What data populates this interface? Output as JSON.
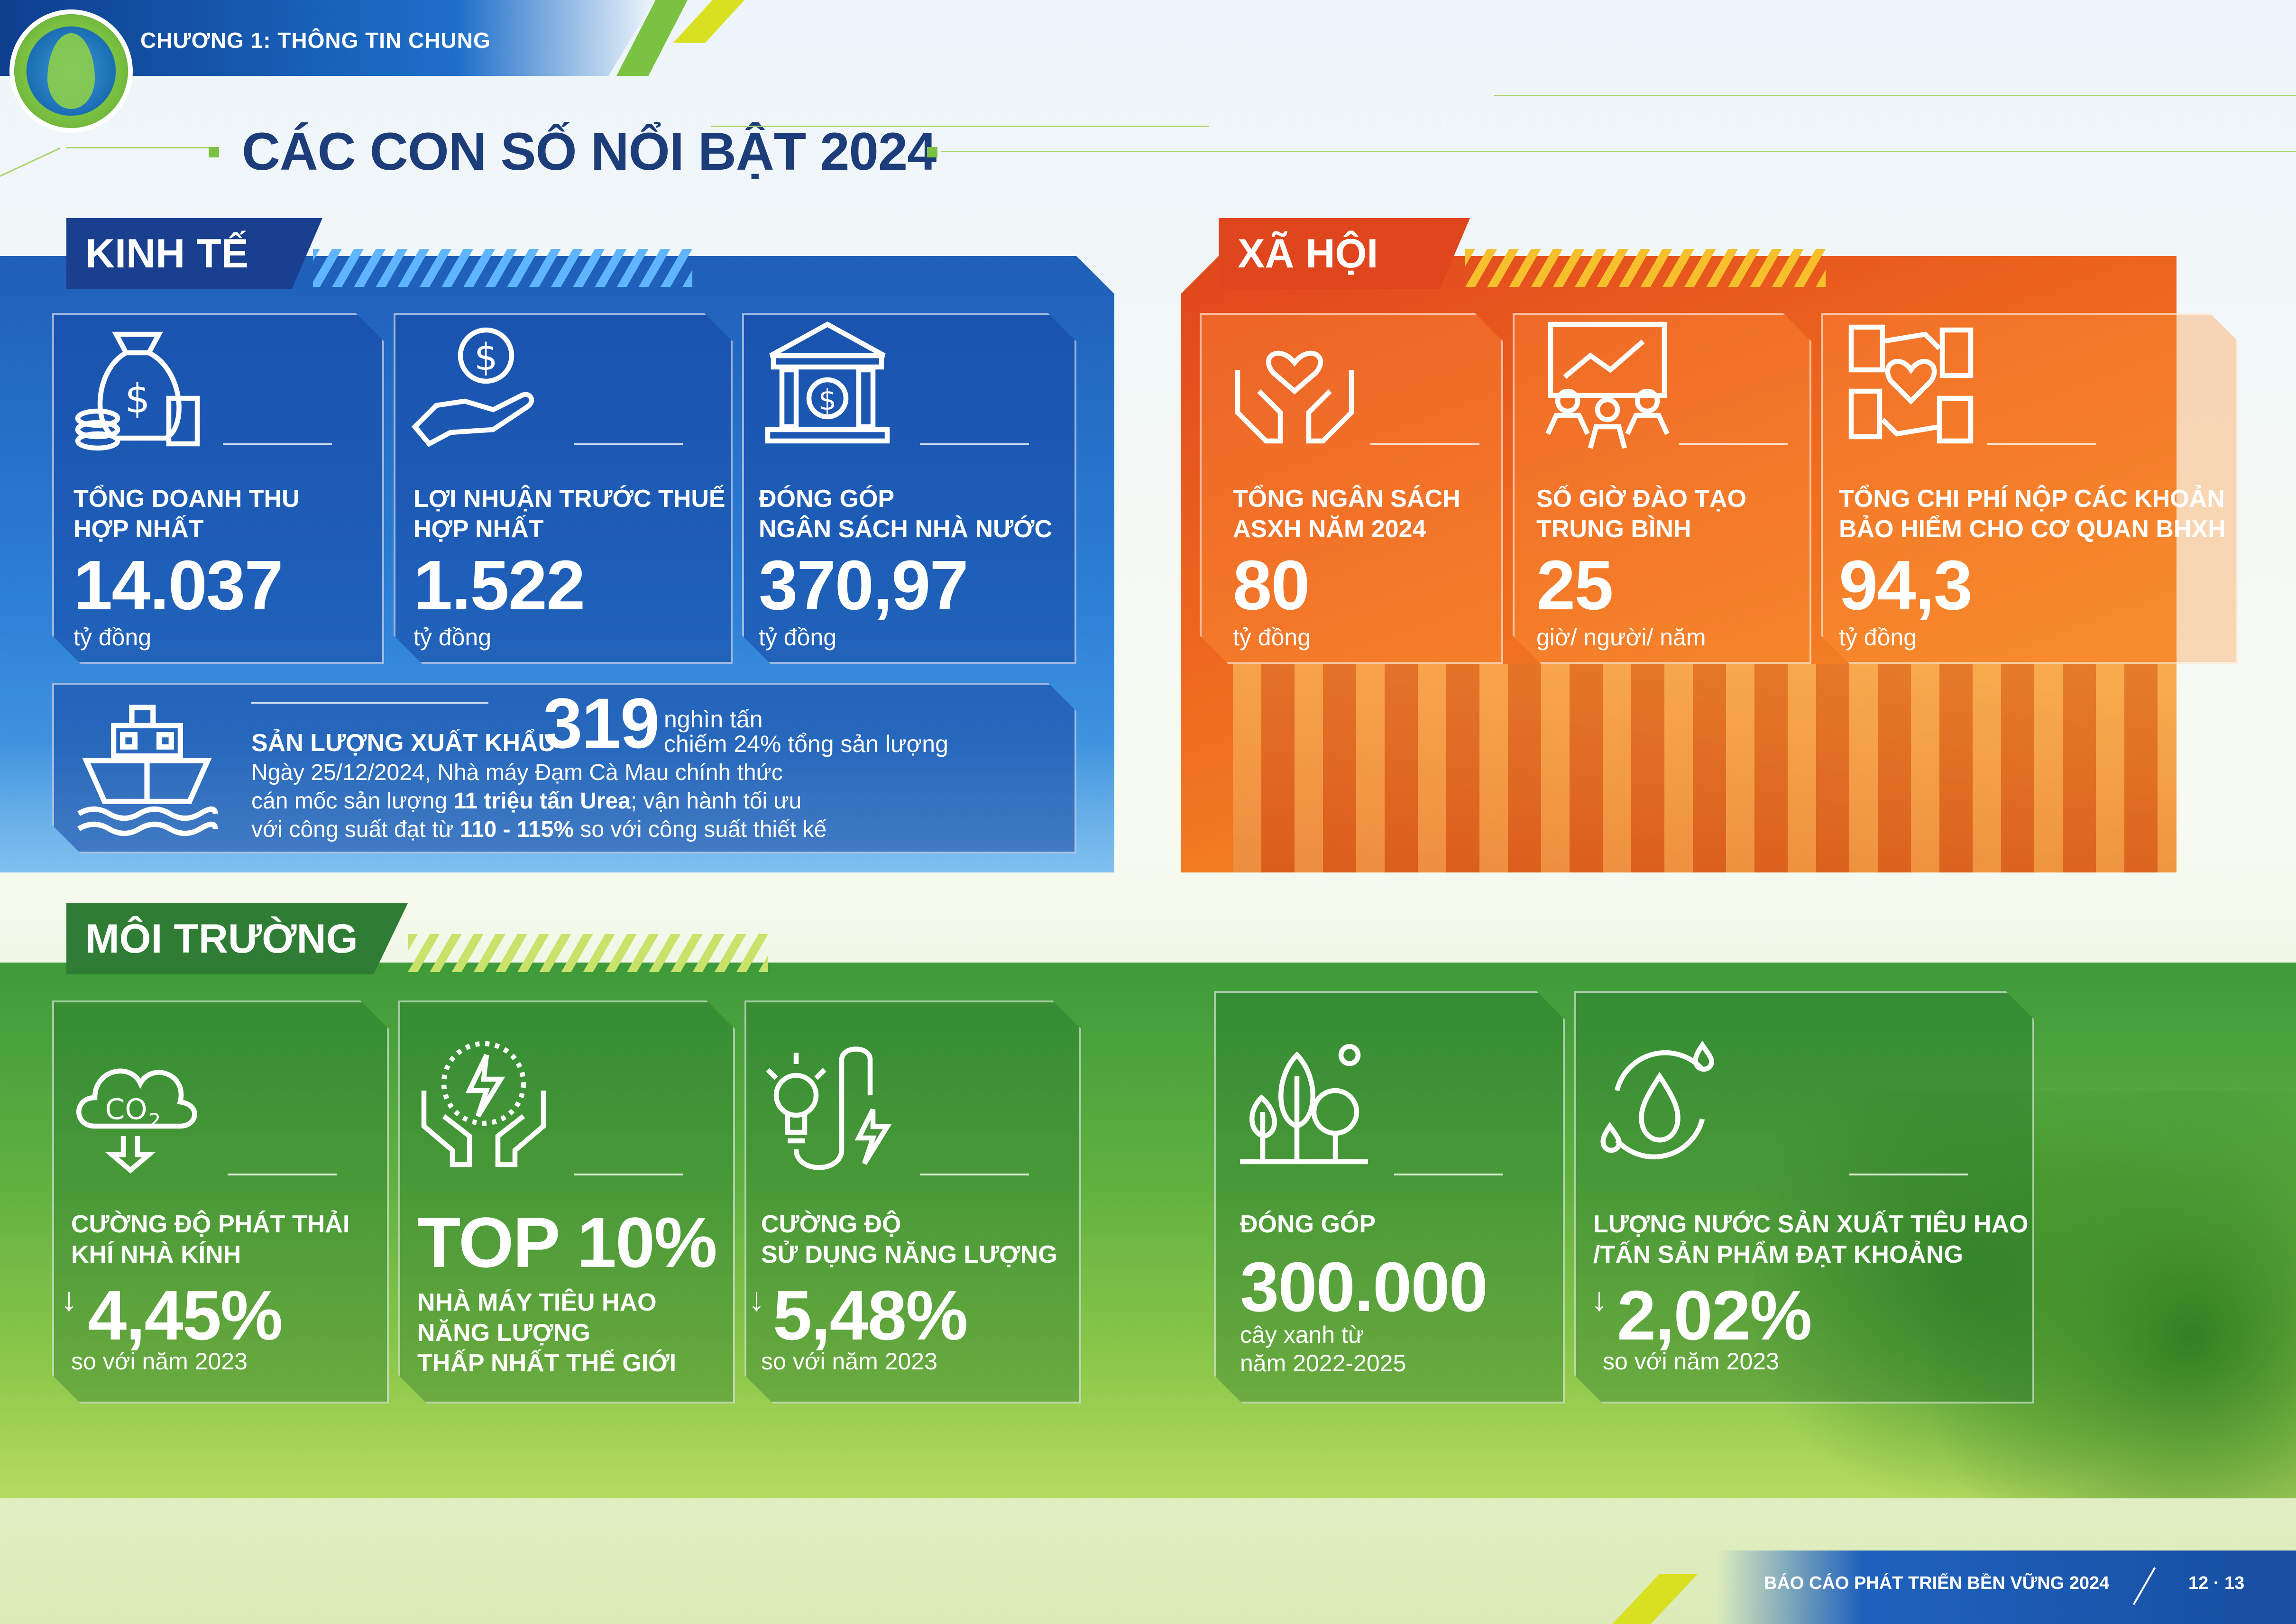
{
  "header": {
    "chapter": "CHƯƠNG 1: THÔNG TIN CHUNG",
    "title": "CÁC CON SỐ NỔI BẬT 2024"
  },
  "kinh_te": {
    "tag": "KINH TẾ",
    "cards": [
      {
        "icon": "money-bag-icon",
        "label1": "TỔNG DOANH THU",
        "label2": "HỢP NHẤT",
        "value": "14.037",
        "unit": "tỷ đồng"
      },
      {
        "icon": "hand-coin-icon",
        "label1": "LỢI NHUẬN TRƯỚC THUẾ",
        "label2": "HỢP NHẤT",
        "value": "1.522",
        "unit": "tỷ đồng"
      },
      {
        "icon": "bank-icon",
        "label1": "ĐÓNG GÓP",
        "label2": "NGÂN SÁCH NHÀ NƯỚC",
        "value": "370,97",
        "unit": "tỷ đồng"
      }
    ],
    "export": {
      "icon": "ship-icon",
      "label": "SẢN LƯỢNG XUẤT KHẨU",
      "value": "319",
      "unit": "nghìn tấn",
      "share": "chiếm 24% tổng sản lượng",
      "line1": "Ngày 25/12/2024, Nhà máy Đạm Cà Mau chính thức",
      "line2_a": "cán mốc sản lượng ",
      "line2_b": "11 triệu tấn Urea",
      "line2_c": "; vận hành tối ưu",
      "line3_a": "với công suất đạt từ ",
      "line3_b": "110 - 115%",
      "line3_c": " so với công suất thiết kế"
    }
  },
  "xa_hoi": {
    "tag": "XÃ HỘI",
    "cards": [
      {
        "icon": "heart-hands-icon",
        "label1": "TỔNG NGÂN SÁCH",
        "label2": "ASXH NĂM 2024",
        "value": "80",
        "unit": "tỷ đồng"
      },
      {
        "icon": "training-icon",
        "label1": "SỐ GIỜ ĐÀO TẠO",
        "label2": "TRUNG BÌNH",
        "value": "25",
        "unit": "giờ/ người/ năm"
      },
      {
        "icon": "insurance-hands-icon",
        "label1": "TỔNG CHI PHÍ NỘP CÁC KHOẢN",
        "label2": "BẢO HIỂM CHO CƠ QUAN BHXH",
        "value": "94,3",
        "unit": "tỷ đồng"
      }
    ]
  },
  "moi_truong": {
    "tag": "MÔI TRƯỜNG",
    "cards": [
      {
        "icon": "co2-cloud-icon",
        "label1": "CƯỜNG ĐỘ PHÁT THẢI",
        "label2": "KHÍ NHÀ KÍNH",
        "value": "4,45%",
        "unit": "so với năm 2023"
      },
      {
        "icon": "energy-hands-icon",
        "value": "TOP 10%",
        "label1": "NHÀ MÁY TIÊU HAO",
        "label2": "NĂNG LƯỢNG",
        "label3": "THẤP NHẤT THẾ GIỚI"
      },
      {
        "icon": "bulb-energy-icon",
        "label1": "CƯỜNG ĐỘ",
        "label2": "SỬ DỤNG NĂNG LƯỢNG",
        "value": "5,48%",
        "unit": "so với năm 2023"
      },
      {
        "icon": "trees-icon",
        "label1": "ĐÓNG GÓP",
        "value": "300.000",
        "unit1": "cây xanh từ",
        "unit2": "năm 2022-2025"
      },
      {
        "icon": "water-drop-icon",
        "label1": "LƯỢNG NƯỚC SẢN XUẤT TIÊU HAO",
        "label2": "/TẤN SẢN PHẨM ĐẠT KHOẢNG",
        "value": "2,02%",
        "unit": "so với năm 2023"
      }
    ]
  },
  "footer": {
    "report": "BÁO CÁO PHÁT TRIỂN BỀN VỮNG 2024",
    "pages": "12 · 13"
  }
}
